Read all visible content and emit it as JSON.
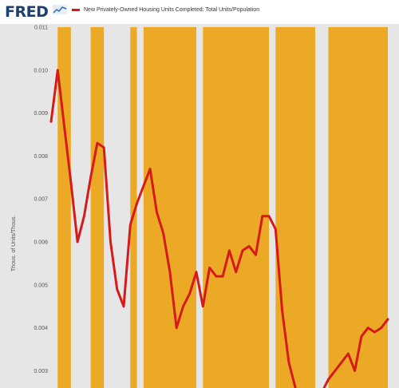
{
  "header": {
    "logo_text": "FRED",
    "logo_icon": "trend-line-icon"
  },
  "chart_data": {
    "type": "line",
    "legend": [
      {
        "label": "New Privately-Owned Housing Units Completed: Total Units/Population",
        "color": "#d61a1a"
      }
    ],
    "ylabel": "Thous. of Units/Thous.",
    "ylim": [
      0.0026,
      0.011
    ],
    "yticks": [
      "0.011",
      "0.010",
      "0.009",
      "0.008",
      "0.007",
      "0.006",
      "0.005",
      "0.004",
      "0.003"
    ],
    "x_labels_visible": false,
    "x": [
      1968,
      1969,
      1970,
      1971,
      1972,
      1973,
      1974,
      1975,
      1976,
      1977,
      1978,
      1979,
      1980,
      1981,
      1982,
      1983,
      1984,
      1985,
      1986,
      1987,
      1988,
      1989,
      1990,
      1991,
      1992,
      1993,
      1994,
      1995,
      1996,
      1997,
      1998,
      1999,
      2000,
      2001,
      2002,
      2003,
      2004,
      2005,
      2006,
      2007,
      2008,
      2009,
      2010,
      2011,
      2012,
      2013,
      2014,
      2015,
      2016,
      2017,
      2018,
      2019
    ],
    "series": [
      {
        "name": "New Privately-Owned Housing Units Completed: Total Units/Population",
        "color": "#d61a1a",
        "values": [
          0.0088,
          0.01,
          0.0087,
          0.0074,
          0.006,
          0.0066,
          0.0075,
          0.0083,
          0.0082,
          0.006,
          0.0049,
          0.0045,
          0.0064,
          0.0069,
          0.0073,
          0.0077,
          0.0067,
          0.0062,
          0.0053,
          0.004,
          0.0045,
          0.0048,
          0.0053,
          0.0045,
          0.0054,
          0.0052,
          0.0052,
          0.0058,
          0.0053,
          0.0058,
          0.0059,
          0.0057,
          0.0066,
          0.0066,
          0.0063,
          0.0044,
          0.0032,
          0.0026,
          0.0022,
          0.0023,
          0.0023,
          0.0025,
          0.0028,
          0.003,
          0.0032,
          0.0034,
          0.003,
          0.0038,
          0.004,
          0.0039,
          0.004,
          0.0042
        ]
      }
    ],
    "shaded_bands": [
      {
        "from": 1969,
        "to": 1971
      },
      {
        "from": 1974,
        "to": 1976
      },
      {
        "from": 1980,
        "to": 1981
      },
      {
        "from": 1982,
        "to": 1990
      },
      {
        "from": 1991,
        "to": 2001
      },
      {
        "from": 2002,
        "to": 2008
      },
      {
        "from": 2010,
        "to": 2019
      }
    ],
    "colors": {
      "band": "#eba925",
      "gap": "#e6e6e6",
      "line": "#d61a1a"
    }
  }
}
